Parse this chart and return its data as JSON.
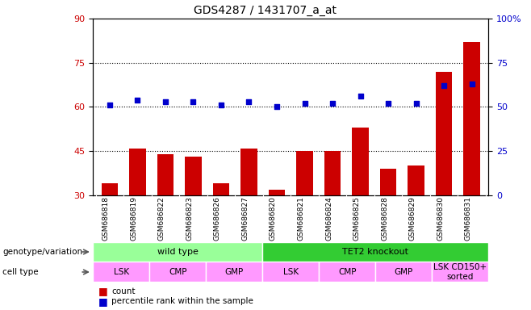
{
  "title": "GDS4287 / 1431707_a_at",
  "samples": [
    "GSM686818",
    "GSM686819",
    "GSM686822",
    "GSM686823",
    "GSM686826",
    "GSM686827",
    "GSM686820",
    "GSM686821",
    "GSM686824",
    "GSM686825",
    "GSM686828",
    "GSM686829",
    "GSM686830",
    "GSM686831"
  ],
  "bar_values": [
    34,
    46,
    44,
    43,
    34,
    46,
    32,
    45,
    45,
    53,
    39,
    40,
    72,
    82
  ],
  "dot_values": [
    51,
    54,
    53,
    53,
    51,
    53,
    50,
    52,
    52,
    56,
    52,
    52,
    62,
    63
  ],
  "bar_color": "#cc0000",
  "dot_color": "#0000cc",
  "ylim_left": [
    30,
    90
  ],
  "ylim_right": [
    0,
    100
  ],
  "yticks_left": [
    30,
    45,
    60,
    75,
    90
  ],
  "yticks_right": [
    0,
    25,
    50,
    75,
    100
  ],
  "ytick_labels_right": [
    "0",
    "25",
    "50",
    "75",
    "100%"
  ],
  "hlines": [
    45,
    60,
    75
  ],
  "genotype_groups": [
    {
      "label": "wild type",
      "start": 0,
      "end": 5,
      "color": "#99ff99"
    },
    {
      "label": "TET2 knockout",
      "start": 6,
      "end": 13,
      "color": "#33cc33"
    }
  ],
  "cell_type_groups": [
    {
      "label": "LSK",
      "start": 0,
      "end": 1
    },
    {
      "label": "CMP",
      "start": 2,
      "end": 3
    },
    {
      "label": "GMP",
      "start": 4,
      "end": 5
    },
    {
      "label": "LSK",
      "start": 6,
      "end": 7
    },
    {
      "label": "CMP",
      "start": 8,
      "end": 9
    },
    {
      "label": "GMP",
      "start": 10,
      "end": 11
    },
    {
      "label": "LSK CD150+\nsorted",
      "start": 12,
      "end": 13
    }
  ],
  "cell_type_color": "#ff99ff",
  "legend_count_color": "#cc0000",
  "legend_dot_color": "#0000cc",
  "bg_color": "#c8c8c8",
  "title_fontsize": 10,
  "tick_label_fontsize": 6.5,
  "row_label_fontsize": 7.5,
  "geno_fontsize": 8,
  "cell_fontsize": 7.5
}
